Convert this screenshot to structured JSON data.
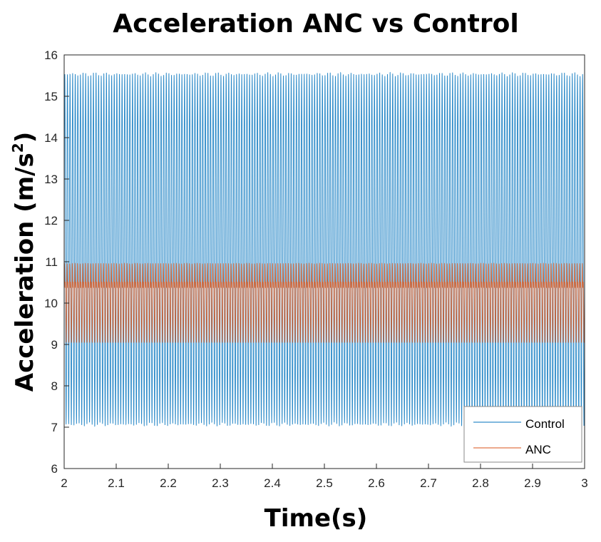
{
  "chart_data": {
    "type": "line",
    "title": "Acceleration ANC vs Control",
    "xlabel": "Time(s)",
    "ylabel": "Acceleration (m/s",
    "ylabel_sup": "2",
    "ylabel_close": ")",
    "xlim": [
      2,
      3
    ],
    "ylim": [
      6,
      16
    ],
    "xticks": [
      "2",
      "2.1",
      "2.2",
      "2.3",
      "2.4",
      "2.5",
      "2.6",
      "2.7",
      "2.8",
      "2.9",
      "3"
    ],
    "yticks": [
      "6",
      "7",
      "8",
      "9",
      "10",
      "11",
      "12",
      "13",
      "14",
      "15",
      "16"
    ],
    "legend_position": "bottom-right",
    "series": [
      {
        "name": "Control",
        "color": "#0072BD",
        "mean": 11.3,
        "min": 7.05,
        "max": 15.55,
        "frequency_hz": 200
      },
      {
        "name": "ANC",
        "color": "#D95319",
        "mean": 10.0,
        "min": 9.1,
        "max": 11.2,
        "frequency_hz": 200
      }
    ]
  }
}
